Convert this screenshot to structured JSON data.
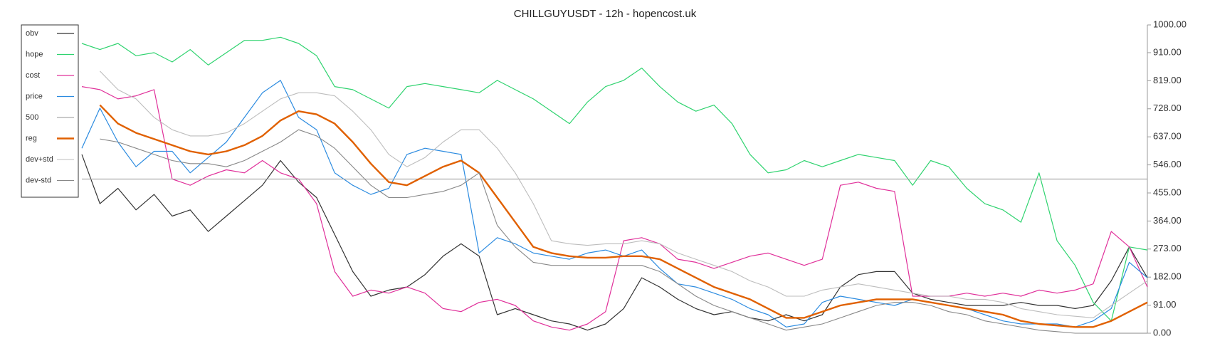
{
  "chart_data": {
    "type": "line",
    "title": "CHILLGUYUSDT - 12h - hopencost.uk",
    "categories": [
      null,
      null,
      null,
      null,
      null,
      null,
      null,
      null,
      null,
      null,
      null,
      null,
      null,
      null,
      null,
      null,
      null,
      null,
      null,
      null,
      null,
      null,
      null,
      null,
      null,
      null,
      null,
      null,
      null,
      null,
      null,
      null,
      null,
      null,
      null,
      null,
      null,
      null,
      null,
      null,
      null,
      null,
      null,
      null,
      null,
      null,
      null,
      null,
      null,
      null,
      null,
      null,
      null,
      null,
      null,
      null,
      null,
      null,
      null,
      null
    ],
    "ylim": [
      0,
      1000
    ],
    "yticks": [
      {
        "value": 0,
        "label": "0.00"
      },
      {
        "value": 91,
        "label": "91.00"
      },
      {
        "value": 182,
        "label": "182.00"
      },
      {
        "value": 273,
        "label": "273.00"
      },
      {
        "value": 364,
        "label": "364.00"
      },
      {
        "value": 455,
        "label": "455.00"
      },
      {
        "value": 546,
        "label": "546.00"
      },
      {
        "value": 637,
        "label": "637.00"
      },
      {
        "value": 728,
        "label": "728.00"
      },
      {
        "value": 819,
        "label": "819.00"
      },
      {
        "value": 910,
        "label": "910.00"
      },
      {
        "value": 1000,
        "label": "1000.00"
      }
    ],
    "grid": false,
    "legend": "upper left",
    "series": [
      {
        "name": "obv",
        "color": "#333333",
        "width": 1.2,
        "values": [
          580,
          420,
          470,
          400,
          450,
          380,
          400,
          330,
          380,
          430,
          480,
          560,
          490,
          440,
          320,
          200,
          120,
          140,
          150,
          190,
          250,
          290,
          250,
          60,
          80,
          60,
          40,
          30,
          10,
          30,
          80,
          180,
          150,
          110,
          80,
          60,
          70,
          50,
          40,
          60,
          40,
          60,
          150,
          190,
          200,
          200,
          130,
          110,
          100,
          90,
          90,
          90,
          100,
          90,
          90,
          80,
          90,
          170,
          280,
          180
        ]
      },
      {
        "name": "hope",
        "color": "#2fd36f",
        "width": 1.2,
        "values": [
          940,
          920,
          940,
          900,
          910,
          880,
          920,
          870,
          910,
          950,
          950,
          960,
          940,
          900,
          800,
          790,
          760,
          730,
          800,
          810,
          800,
          790,
          780,
          820,
          790,
          760,
          720,
          680,
          750,
          800,
          820,
          860,
          800,
          750,
          720,
          740,
          680,
          580,
          520,
          530,
          560,
          540,
          560,
          580,
          570,
          560,
          480,
          560,
          540,
          470,
          420,
          400,
          360,
          520,
          300,
          220,
          100,
          40,
          280,
          270
        ]
      },
      {
        "name": "cost",
        "color": "#e0309a",
        "width": 1.2,
        "values": [
          800,
          790,
          760,
          770,
          790,
          500,
          480,
          510,
          530,
          520,
          560,
          520,
          500,
          420,
          200,
          120,
          140,
          130,
          150,
          130,
          80,
          70,
          100,
          110,
          90,
          40,
          20,
          10,
          30,
          70,
          300,
          310,
          290,
          240,
          230,
          210,
          230,
          250,
          260,
          240,
          220,
          240,
          480,
          490,
          470,
          460,
          120,
          120,
          120,
          130,
          120,
          130,
          120,
          140,
          130,
          140,
          160,
          330,
          280,
          150
        ]
      },
      {
        "name": "price",
        "color": "#2b8be0",
        "width": 1.2,
        "values": [
          600,
          730,
          620,
          540,
          590,
          590,
          520,
          570,
          620,
          700,
          780,
          820,
          700,
          660,
          520,
          480,
          450,
          470,
          580,
          600,
          590,
          580,
          260,
          310,
          290,
          260,
          250,
          240,
          260,
          270,
          250,
          270,
          210,
          160,
          150,
          130,
          110,
          80,
          60,
          20,
          30,
          100,
          120,
          110,
          100,
          90,
          110,
          100,
          90,
          80,
          60,
          40,
          30,
          30,
          30,
          20,
          40,
          80,
          230,
          180
        ]
      },
      {
        "name": "500",
        "color": "#aaaaaa",
        "width": 1.2,
        "values": [
          500,
          500,
          500,
          500,
          500,
          500,
          500,
          500,
          500,
          500,
          500,
          500,
          500,
          500,
          500,
          500,
          500,
          500,
          500,
          500,
          500,
          500,
          500,
          500,
          500,
          500,
          500,
          500,
          500,
          500,
          500,
          500,
          500,
          500,
          500,
          500,
          500,
          500,
          500,
          500,
          500,
          500,
          500,
          500,
          500,
          500,
          500,
          500,
          500,
          500,
          500,
          500,
          500,
          500,
          500,
          500,
          500,
          500,
          500,
          500
        ]
      },
      {
        "name": "reg",
        "color": "#e06000",
        "width": 2.4,
        "values": [
          null,
          740,
          680,
          650,
          630,
          610,
          590,
          580,
          590,
          610,
          640,
          690,
          720,
          710,
          680,
          620,
          550,
          490,
          480,
          510,
          540,
          560,
          520,
          440,
          360,
          280,
          260,
          250,
          245,
          245,
          250,
          250,
          240,
          210,
          180,
          150,
          130,
          110,
          80,
          50,
          50,
          70,
          90,
          100,
          110,
          110,
          110,
          100,
          90,
          80,
          70,
          60,
          40,
          30,
          25,
          20,
          20,
          40,
          70,
          100
        ]
      },
      {
        "name": "dev+std",
        "color": "#bdbdbd",
        "width": 1.1,
        "values": [
          null,
          850,
          790,
          760,
          700,
          660,
          640,
          640,
          650,
          680,
          720,
          760,
          780,
          780,
          770,
          720,
          660,
          580,
          540,
          570,
          620,
          660,
          660,
          600,
          520,
          420,
          300,
          290,
          285,
          290,
          290,
          300,
          290,
          260,
          240,
          220,
          200,
          170,
          150,
          120,
          120,
          140,
          150,
          160,
          150,
          140,
          130,
          120,
          120,
          110,
          110,
          100,
          80,
          70,
          60,
          55,
          50,
          90,
          130,
          170
        ]
      },
      {
        "name": "dev-std",
        "color": "#888888",
        "width": 1.1,
        "values": [
          null,
          630,
          620,
          600,
          580,
          560,
          550,
          550,
          540,
          560,
          590,
          620,
          660,
          640,
          600,
          540,
          480,
          440,
          440,
          450,
          460,
          480,
          520,
          350,
          280,
          230,
          220,
          220,
          220,
          220,
          220,
          220,
          200,
          160,
          120,
          90,
          70,
          50,
          30,
          10,
          20,
          30,
          50,
          70,
          90,
          100,
          100,
          90,
          70,
          60,
          40,
          30,
          20,
          10,
          5,
          0,
          0,
          0,
          0,
          0
        ]
      }
    ]
  }
}
